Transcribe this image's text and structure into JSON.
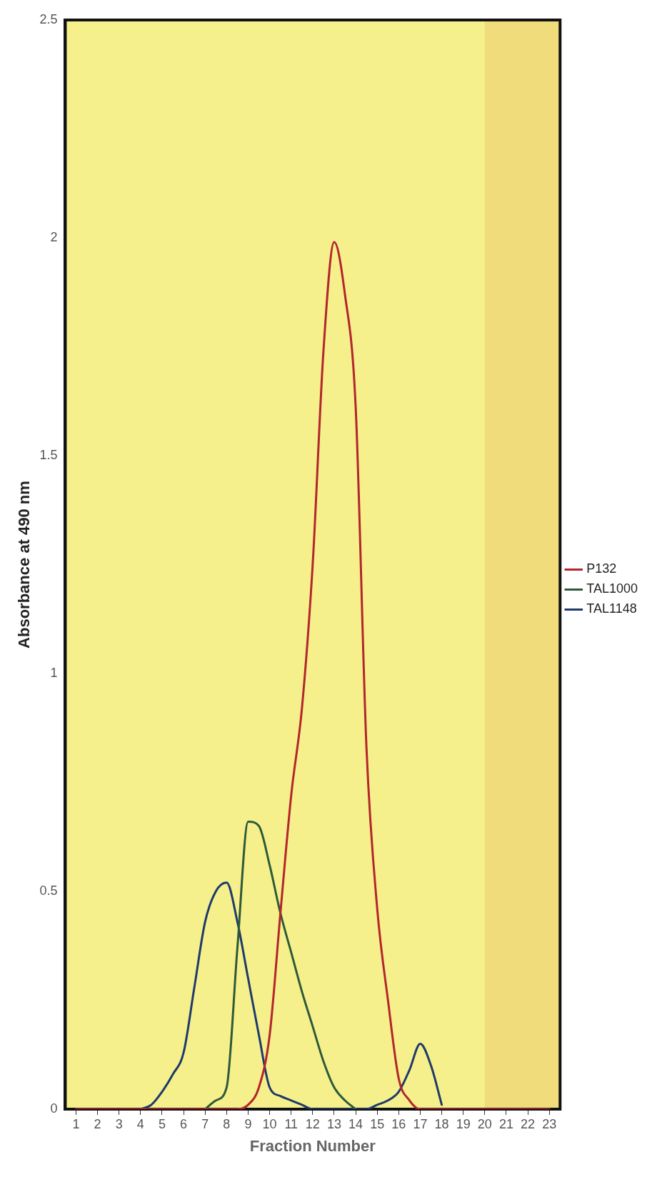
{
  "chart_data": {
    "type": "line",
    "xlabel": "Fraction Number",
    "ylabel": "Absorbance at 490 nm",
    "x": [
      1,
      1.5,
      2,
      2.5,
      3,
      3.5,
      4,
      4.5,
      5,
      5.5,
      6,
      6.5,
      7,
      7.5,
      8,
      8.5,
      9,
      9.5,
      10,
      10.5,
      11,
      11.5,
      12,
      12.5,
      13,
      13.5,
      14,
      14.5,
      15,
      15.5,
      16,
      16.5,
      17,
      17.5,
      18,
      18.5,
      19,
      19.5,
      20,
      20.5,
      21,
      21.5,
      22,
      22.5,
      23
    ],
    "series": [
      {
        "name": "TAL1148",
        "color": "#1f3a6b",
        "values": [
          null,
          null,
          null,
          null,
          null,
          null,
          0,
          0.01,
          0.04,
          0.08,
          0.13,
          0.28,
          0.43,
          0.5,
          0.52,
          0.43,
          0.3,
          0.17,
          0.05,
          0.03,
          0.02,
          0.01,
          0,
          0,
          0,
          0,
          0,
          0,
          0.01,
          0.02,
          0.04,
          0.09,
          0.15,
          0.1,
          0.01,
          null,
          null,
          null,
          null,
          null,
          null,
          null,
          null,
          null,
          null
        ]
      },
      {
        "name": "TAL1000",
        "color": "#2d5a3a",
        "values": [
          null,
          null,
          null,
          null,
          null,
          null,
          null,
          null,
          null,
          null,
          null,
          null,
          0,
          0.02,
          0.05,
          0.37,
          0.66,
          0.65,
          0.56,
          0.45,
          0.36,
          0.27,
          0.19,
          0.11,
          0.05,
          0.02,
          0,
          null,
          null,
          null,
          null,
          null,
          null,
          null,
          null,
          null,
          null,
          null,
          null,
          null,
          null,
          null,
          null,
          null,
          null
        ]
      },
      {
        "name": "P132",
        "color": "#b3262d",
        "values": [
          0,
          0,
          0,
          0,
          0,
          0,
          0,
          0,
          0,
          0,
          0,
          0,
          0,
          0,
          0,
          0,
          0.01,
          0.05,
          0.17,
          0.45,
          0.72,
          0.92,
          1.25,
          1.74,
          1.99,
          1.87,
          1.61,
          0.83,
          0.46,
          0.25,
          0.07,
          0.02,
          0,
          0,
          0,
          0,
          0,
          0,
          0,
          0,
          0,
          0,
          0,
          0,
          0
        ]
      }
    ],
    "xlim": [
      0.5,
      23.5
    ],
    "xticks": [
      1,
      2,
      3,
      4,
      5,
      6,
      7,
      8,
      9,
      10,
      11,
      12,
      13,
      14,
      15,
      16,
      17,
      18,
      19,
      20,
      21,
      22,
      23
    ],
    "ylim": [
      0,
      2.5
    ],
    "yticks": [
      0,
      0.5,
      1,
      1.5,
      2,
      2.5
    ],
    "bands": [
      {
        "axis": "x",
        "from": 20,
        "to": 23.5,
        "color": "#f0dc7a"
      }
    ],
    "grid": false,
    "legend": "right",
    "marker": "none",
    "line_style": "solid"
  }
}
